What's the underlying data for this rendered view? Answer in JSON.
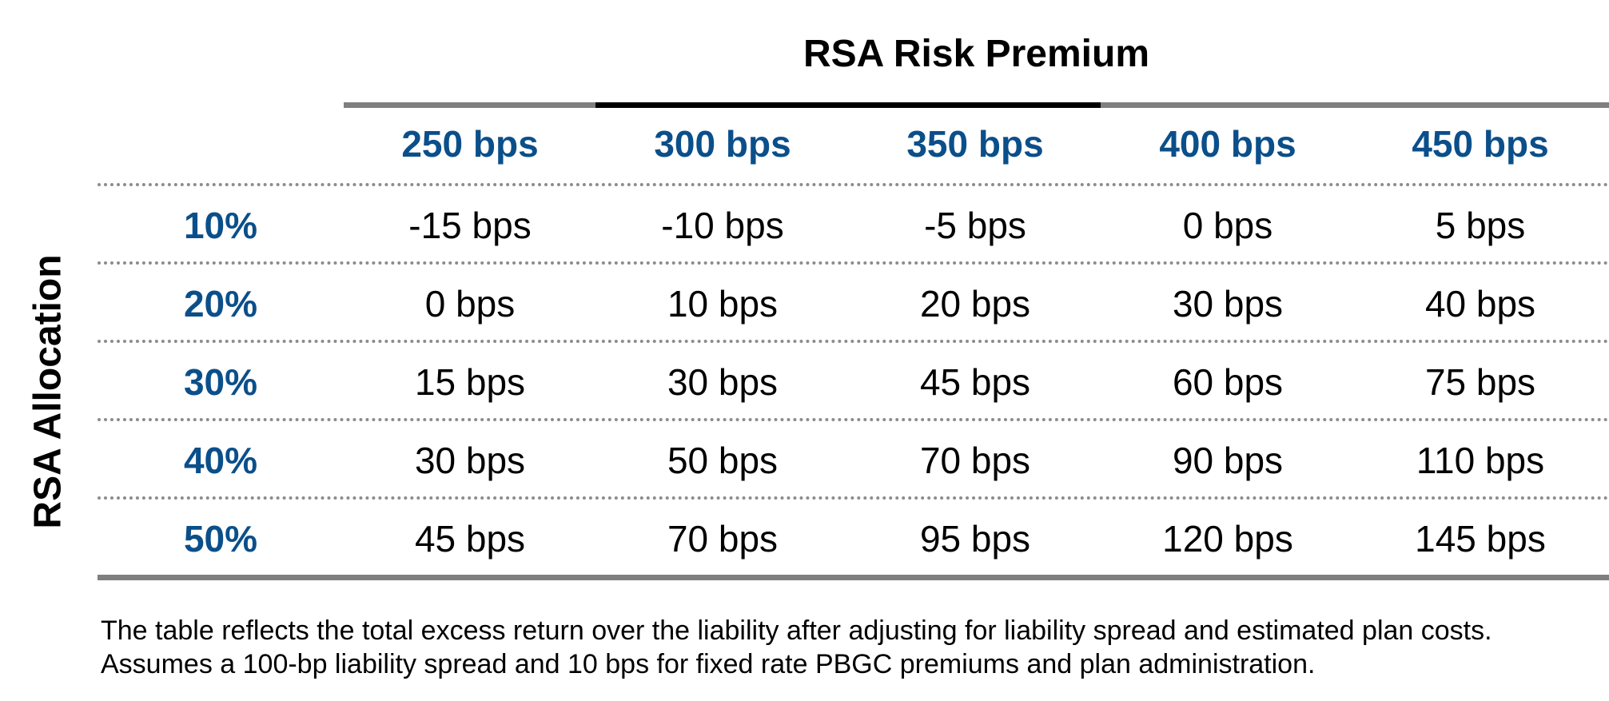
{
  "chart_data": {
    "type": "table",
    "title": "RSA Risk Premium",
    "ylabel": "RSA Allocation",
    "columns": [
      "250 bps",
      "300 bps",
      "350 bps",
      "400 bps",
      "450 bps"
    ],
    "rows": [
      {
        "label": "10%",
        "values": [
          "-15 bps",
          "-10 bps",
          "-5 bps",
          "0 bps",
          "5 bps"
        ]
      },
      {
        "label": "20%",
        "values": [
          "0 bps",
          "10 bps",
          "20 bps",
          "30 bps",
          "40 bps"
        ]
      },
      {
        "label": "30%",
        "values": [
          "15 bps",
          "30 bps",
          "45 bps",
          "60 bps",
          "75 bps"
        ]
      },
      {
        "label": "40%",
        "values": [
          "30 bps",
          "50 bps",
          "70 bps",
          "90 bps",
          "110 bps"
        ]
      },
      {
        "label": "50%",
        "values": [
          "45 bps",
          "70 bps",
          "95 bps",
          "120 bps",
          "145 bps"
        ]
      }
    ],
    "footnote": "The table reflects the total excess return over the liability after adjusting for liability spread and estimated plan costs. Assumes a 100-bp liability spread and 10 bps for fixed rate PBGC premiums and plan administration."
  },
  "colors": {
    "header_blue": "#0b4f8a",
    "rule_grey": "#7f7f7f",
    "dotted_grey": "#8c8c8c"
  }
}
